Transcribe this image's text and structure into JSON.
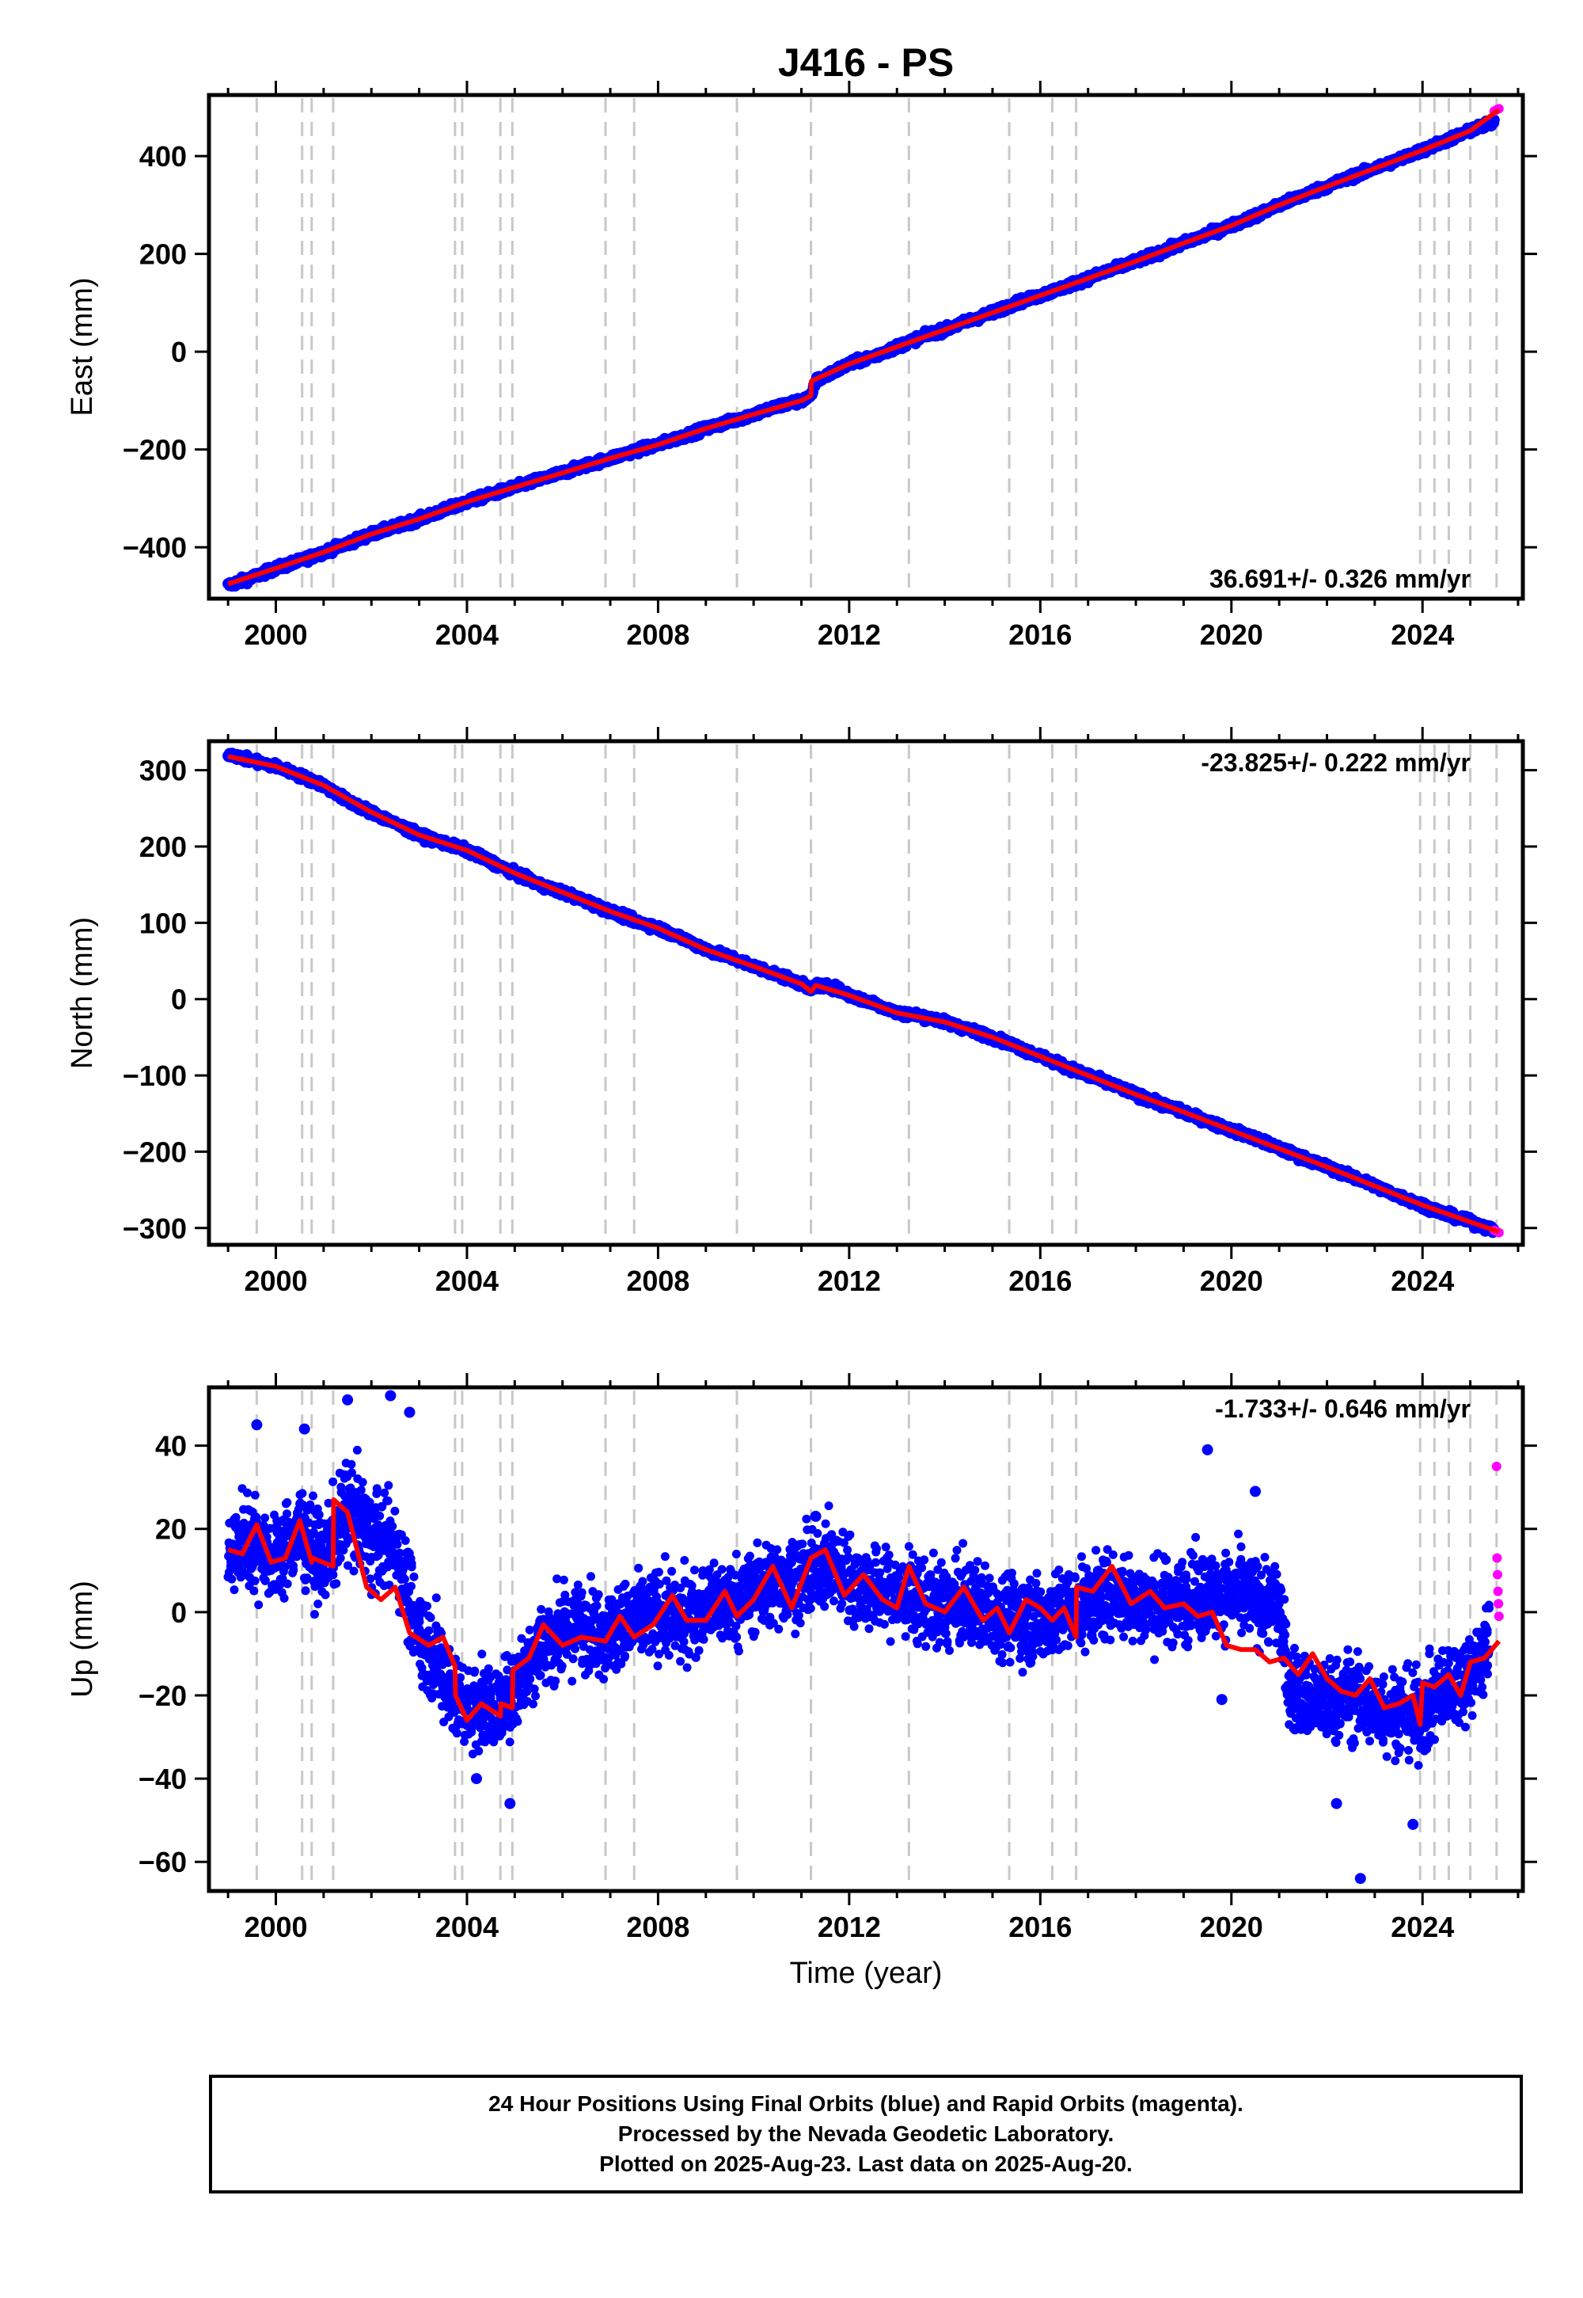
{
  "colors": {
    "final": "#0000ff",
    "rapid": "#ff00ff",
    "fit": "#ff0000",
    "guide": "#c8c8c8"
  },
  "chart_data": [
    {
      "type": "scatter",
      "name": "east",
      "title": "J416 - PS",
      "xlabel": "",
      "ylabel": "East (mm)",
      "xlim": [
        1998.6,
        2026.1
      ],
      "ylim": [
        -505,
        525
      ],
      "xticks": [
        2000,
        2004,
        2008,
        2012,
        2016,
        2020,
        2024
      ],
      "yticks": [
        -400,
        -200,
        0,
        200,
        400
      ],
      "rate_label": "36.691+/- 0.326 mm/yr",
      "rate_position": "bottom-right",
      "guide_lines_x": [
        1999.6,
        2000.55,
        2000.75,
        2001.2,
        2003.75,
        2003.9,
        2004.7,
        2004.95,
        2006.9,
        2007.5,
        2009.65,
        2011.2,
        2013.25,
        2015.35,
        2016.25,
        2016.75,
        2023.95,
        2024.25,
        2024.55,
        2025.0,
        2025.55
      ],
      "series": [
        {
          "name": "Final Orbits (blue)",
          "kind": "points",
          "x": [
            1999.0,
            1999.5,
            2000.0,
            2000.5,
            2001.0,
            2001.5,
            2002.0,
            2002.5,
            2003.0,
            2003.5,
            2004.0,
            2004.5,
            2005.0,
            2005.5,
            2006.0,
            2006.5,
            2007.0,
            2007.5,
            2008.0,
            2008.5,
            2009.0,
            2009.5,
            2010.0,
            2010.5,
            2011.0,
            2011.2,
            2011.3,
            2011.7,
            2012.0,
            2012.5,
            2013.0,
            2013.5,
            2014.0,
            2014.5,
            2015.0,
            2015.5,
            2016.0,
            2016.5,
            2017.0,
            2017.5,
            2018.0,
            2018.5,
            2019.0,
            2019.5,
            2020.0,
            2020.5,
            2021.0,
            2021.5,
            2022.0,
            2022.5,
            2023.0,
            2023.5,
            2024.0,
            2024.5,
            2025.0,
            2025.5
          ],
          "y": [
            -478,
            -462,
            -443,
            -428,
            -410,
            -392,
            -373,
            -358,
            -342,
            -325,
            -307,
            -292,
            -277,
            -262,
            -248,
            -232,
            -218,
            -203,
            -190,
            -174,
            -157,
            -143,
            -128,
            -112,
            -100,
            -92,
            -60,
            -40,
            -25,
            -10,
            10,
            30,
            45,
            63,
            80,
            100,
            115,
            132,
            150,
            168,
            185,
            203,
            222,
            240,
            258,
            278,
            300,
            320,
            338,
            357,
            375,
            393,
            412,
            432,
            452,
            470
          ]
        },
        {
          "name": "Rapid Orbits (magenta)",
          "kind": "points",
          "x": [
            2025.5,
            2025.55,
            2025.6
          ],
          "y": [
            492,
            495,
            497
          ]
        },
        {
          "name": "fit",
          "kind": "line",
          "x": [
            1999.0,
            2000.0,
            2001.0,
            2002.0,
            2003.0,
            2004.0,
            2005.0,
            2006.0,
            2007.0,
            2008.0,
            2009.0,
            2010.0,
            2011.0,
            2011.2,
            2011.21,
            2012.0,
            2013.0,
            2014.0,
            2015.0,
            2016.0,
            2017.0,
            2018.0,
            2019.0,
            2020.0,
            2021.0,
            2022.0,
            2023.0,
            2024.0,
            2025.0,
            2025.6
          ],
          "y": [
            -475,
            -443,
            -410,
            -373,
            -342,
            -307,
            -277,
            -248,
            -218,
            -190,
            -157,
            -128,
            -100,
            -90,
            -60,
            -25,
            10,
            45,
            80,
            115,
            150,
            185,
            222,
            258,
            300,
            338,
            375,
            412,
            452,
            495
          ]
        }
      ]
    },
    {
      "type": "scatter",
      "name": "north",
      "xlabel": "",
      "ylabel": "North (mm)",
      "xlim": [
        1998.6,
        2026.1
      ],
      "ylim": [
        -322,
        338
      ],
      "xticks": [
        2000,
        2004,
        2008,
        2012,
        2016,
        2020,
        2024
      ],
      "yticks": [
        -300,
        -200,
        -100,
        0,
        100,
        200,
        300
      ],
      "rate_label": "-23.825+/- 0.222 mm/yr",
      "rate_position": "top-right",
      "guide_lines_x": [
        1999.6,
        2000.55,
        2000.75,
        2001.2,
        2003.75,
        2003.9,
        2004.7,
        2004.95,
        2006.9,
        2007.5,
        2009.65,
        2011.2,
        2013.25,
        2015.35,
        2016.25,
        2016.75,
        2023.95,
        2024.25,
        2024.55,
        2025.0,
        2025.55
      ],
      "series": [
        {
          "name": "Final Orbits (blue)",
          "kind": "points",
          "x": [
            1999.0,
            1999.5,
            2000.0,
            2000.5,
            2001.0,
            2001.5,
            2002.0,
            2002.5,
            2003.0,
            2003.5,
            2004.0,
            2004.5,
            2005.0,
            2005.5,
            2006.0,
            2006.5,
            2007.0,
            2007.5,
            2008.0,
            2008.5,
            2009.0,
            2009.5,
            2010.0,
            2010.5,
            2011.0,
            2011.2,
            2011.3,
            2011.7,
            2012.0,
            2012.5,
            2013.0,
            2013.5,
            2014.0,
            2014.5,
            2015.0,
            2015.5,
            2016.0,
            2016.5,
            2017.0,
            2017.5,
            2018.0,
            2018.5,
            2019.0,
            2019.5,
            2020.0,
            2020.5,
            2021.0,
            2021.5,
            2022.0,
            2022.5,
            2023.0,
            2023.5,
            2024.0,
            2024.5,
            2025.0,
            2025.5
          ],
          "y": [
            322,
            312,
            305,
            293,
            280,
            260,
            245,
            230,
            215,
            205,
            195,
            180,
            165,
            150,
            140,
            128,
            115,
            103,
            93,
            80,
            65,
            55,
            43,
            32,
            20,
            12,
            18,
            15,
            5,
            -5,
            -18,
            -22,
            -30,
            -40,
            -50,
            -62,
            -75,
            -88,
            -100,
            -112,
            -125,
            -137,
            -148,
            -160,
            -172,
            -182,
            -196,
            -208,
            -220,
            -232,
            -245,
            -258,
            -270,
            -282,
            -292,
            -303
          ]
        },
        {
          "name": "Rapid Orbits (magenta)",
          "kind": "points",
          "x": [
            2025.5,
            2025.55,
            2025.6
          ],
          "y": [
            -303,
            -304,
            -306
          ]
        },
        {
          "name": "fit",
          "kind": "line",
          "x": [
            1999.0,
            2000.0,
            2001.0,
            2002.0,
            2003.0,
            2004.0,
            2005.0,
            2006.0,
            2007.0,
            2008.0,
            2009.0,
            2010.0,
            2011.0,
            2011.2,
            2011.3,
            2012.0,
            2013.0,
            2014.0,
            2015.0,
            2016.0,
            2017.0,
            2018.0,
            2019.0,
            2020.0,
            2021.0,
            2022.0,
            2023.0,
            2024.0,
            2025.0,
            2025.6
          ],
          "y": [
            318,
            305,
            280,
            245,
            215,
            195,
            165,
            140,
            115,
            93,
            65,
            43,
            20,
            10,
            18,
            5,
            -18,
            -30,
            -50,
            -75,
            -100,
            -125,
            -148,
            -172,
            -196,
            -220,
            -245,
            -270,
            -292,
            -305
          ]
        }
      ]
    },
    {
      "type": "scatter",
      "name": "up",
      "xlabel": "Time (year)",
      "ylabel": "Up (mm)",
      "xlim": [
        1998.6,
        2026.1
      ],
      "ylim": [
        -67,
        54
      ],
      "xticks": [
        2000,
        2004,
        2008,
        2012,
        2016,
        2020,
        2024
      ],
      "yticks": [
        -60,
        -40,
        -20,
        0,
        20,
        40
      ],
      "rate_label": "-1.733+/- 0.646 mm/yr",
      "rate_position": "top-right",
      "guide_lines_x": [
        1999.6,
        2000.55,
        2000.75,
        2001.2,
        2003.75,
        2003.9,
        2004.7,
        2004.95,
        2006.9,
        2007.5,
        2009.65,
        2011.2,
        2013.25,
        2015.35,
        2016.25,
        2016.75,
        2023.95,
        2024.25,
        2024.55,
        2025.0,
        2025.55
      ],
      "series": [
        {
          "name": "Final Orbits (blue)",
          "kind": "band",
          "x": [
            1999.0,
            1999.5,
            2000.0,
            2000.5,
            2001.0,
            2001.5,
            2002.0,
            2002.5,
            2003.0,
            2003.4,
            2003.8,
            2004.2,
            2004.6,
            2005.0,
            2005.5,
            2006.0,
            2006.5,
            2007.0,
            2007.5,
            2008.0,
            2008.5,
            2009.0,
            2009.5,
            2010.0,
            2010.5,
            2011.0,
            2011.5,
            2012.0,
            2012.5,
            2013.0,
            2013.5,
            2014.0,
            2014.5,
            2015.0,
            2015.5,
            2016.0,
            2016.5,
            2017.0,
            2017.5,
            2018.0,
            2018.5,
            2019.0,
            2019.5,
            2020.0,
            2020.5,
            2021.0,
            2021.2,
            2021.5,
            2022.0,
            2022.5,
            2023.0,
            2023.5,
            2024.0,
            2024.5,
            2025.0,
            2025.4
          ],
          "y": [
            14,
            18,
            13,
            20,
            12,
            25,
            18,
            16,
            -5,
            -12,
            -22,
            -22,
            -24,
            -18,
            -8,
            -5,
            -3,
            -5,
            -2,
            0,
            -2,
            2,
            2,
            5,
            7,
            8,
            12,
            8,
            5,
            4,
            3,
            1,
            2,
            0,
            -1,
            -2,
            0,
            2,
            4,
            3,
            2,
            3,
            4,
            4,
            3,
            2,
            -18,
            -20,
            -22,
            -20,
            -23,
            -24,
            -25,
            -18,
            -15,
            -8
          ],
          "spread": [
            9,
            10,
            9,
            10,
            9,
            11,
            10,
            10,
            10,
            10,
            9,
            9,
            9,
            9,
            9,
            9,
            9,
            9,
            9,
            9,
            9,
            9,
            9,
            9,
            9,
            9,
            9,
            9,
            9,
            9,
            9,
            9,
            9,
            9,
            9,
            9,
            9,
            9,
            9,
            9,
            9,
            9,
            9,
            9,
            9,
            9,
            9,
            9,
            9,
            9,
            9,
            9,
            9,
            9,
            9,
            9
          ]
        },
        {
          "name": "Final Orbits outliers",
          "kind": "points",
          "x": [
            1999.6,
            2000.6,
            2001.5,
            2002.4,
            2002.8,
            2004.9,
            2004.2,
            2011.3,
            2019.5,
            2020.5,
            2022.2,
            2022.7,
            2023.8,
            2019.8
          ],
          "y": [
            45,
            44,
            51,
            52,
            48,
            -46,
            -40,
            23,
            39,
            29,
            -46,
            -64,
            -51,
            -21
          ]
        },
        {
          "name": "Rapid Orbits (magenta)",
          "kind": "points",
          "x": [
            2025.55,
            2025.56,
            2025.57,
            2025.58,
            2025.59,
            2025.6
          ],
          "y": [
            35,
            13,
            9,
            5,
            2,
            -1
          ]
        },
        {
          "name": "fit",
          "kind": "line",
          "x": [
            1999.0,
            1999.3,
            1999.6,
            1999.9,
            2000.2,
            2000.5,
            2000.75,
            2000.76,
            2001.2,
            2001.21,
            2001.5,
            2001.9,
            2002.2,
            2002.5,
            2002.8,
            2003.2,
            2003.5,
            2003.75,
            2003.76,
            2004.0,
            2004.3,
            2004.7,
            2004.71,
            2004.95,
            2004.96,
            2005.3,
            2005.6,
            2006.0,
            2006.4,
            2006.9,
            2007.2,
            2007.5,
            2007.9,
            2008.3,
            2008.6,
            2009.0,
            2009.4,
            2009.65,
            2010.0,
            2010.4,
            2010.8,
            2011.2,
            2011.5,
            2011.9,
            2012.3,
            2012.7,
            2013.0,
            2013.25,
            2013.6,
            2014.0,
            2014.4,
            2014.8,
            2015.1,
            2015.35,
            2015.7,
            2016.0,
            2016.25,
            2016.5,
            2016.75,
            2016.76,
            2017.1,
            2017.5,
            2017.9,
            2018.3,
            2018.6,
            2019.0,
            2019.3,
            2019.6,
            2019.9,
            2020.2,
            2020.5,
            2020.8,
            2021.1,
            2021.4,
            2021.7,
            2022.0,
            2022.3,
            2022.6,
            2022.9,
            2023.2,
            2023.5,
            2023.8,
            2023.95,
            2024.0,
            2024.25,
            2024.55,
            2024.8,
            2025.0,
            2025.3,
            2025.6
          ],
          "y": [
            15,
            14,
            21,
            12,
            13,
            22,
            12,
            13,
            11,
            27,
            24,
            6,
            3,
            6,
            -5,
            -8,
            -6,
            -13,
            -20,
            -26,
            -22,
            -25,
            -22,
            -23,
            -14,
            -11,
            -3,
            -8,
            -6,
            -7,
            -1,
            -6,
            -3,
            4,
            -2,
            -2,
            5,
            -1,
            3,
            11,
            1,
            13,
            15,
            4,
            9,
            3,
            1,
            11,
            2,
            0,
            6,
            -2,
            1,
            -5,
            3,
            1,
            -2,
            1,
            -6,
            6,
            5,
            11,
            2,
            5,
            1,
            2,
            -1,
            0,
            -8,
            -9,
            -9,
            -12,
            -11,
            -15,
            -10,
            -16,
            -19,
            -20,
            -16,
            -23,
            -22,
            -20,
            -27,
            -17,
            -18,
            -15,
            -20,
            -12,
            -11,
            -7
          ]
        }
      ]
    }
  ],
  "footer": {
    "line1": "24 Hour Positions Using Final Orbits (blue) and Rapid Orbits (magenta).",
    "line2": "Processed by the Nevada Geodetic Laboratory.",
    "line3": "Plotted on 2025-Aug-23. Last data on 2025-Aug-20."
  }
}
